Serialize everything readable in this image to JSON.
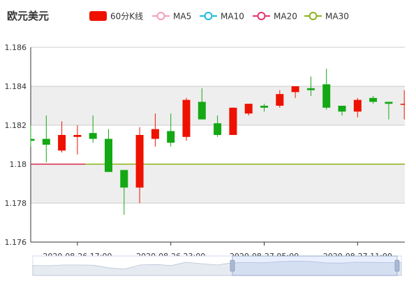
{
  "chart_data": {
    "type": "candlestick",
    "title": "欧元美元",
    "legend": {
      "placement": "top",
      "items": [
        {
          "name": "60分K线",
          "color": "#ee1100",
          "shape": "rect"
        },
        {
          "name": "MA5",
          "color": "#f59cc0",
          "shape": "line"
        },
        {
          "name": "MA10",
          "color": "#1cbbd8",
          "shape": "line"
        },
        {
          "name": "MA20",
          "color": "#e8326e",
          "shape": "line"
        },
        {
          "name": "MA30",
          "color": "#8ab31b",
          "shape": "line"
        }
      ]
    },
    "y_axis": {
      "min": 1.176,
      "max": 1.186,
      "ticks": [
        "1.176",
        "1.178",
        "1.18",
        "1.182",
        "1.184",
        "1.186"
      ]
    },
    "x_axis": {
      "labels": [
        "2020-08-26 17:00",
        "2020-08-26 23:00",
        "2020-08-27 05:00",
        "2020-08-27 11:00"
      ],
      "label_index": [
        3,
        9,
        15,
        21
      ]
    },
    "up_color": "#ee1100",
    "down_color": "#14a814",
    "candles": [
      {
        "open": 1.1813,
        "close": 1.1812,
        "low": 1.1809,
        "high": 1.182
      },
      {
        "open": 1.1813,
        "close": 1.181,
        "low": 1.1801,
        "high": 1.1825
      },
      {
        "open": 1.1807,
        "close": 1.1815,
        "low": 1.1806,
        "high": 1.1822
      },
      {
        "open": 1.1814,
        "close": 1.1815,
        "low": 1.1805,
        "high": 1.182
      },
      {
        "open": 1.1816,
        "close": 1.1813,
        "low": 1.1811,
        "high": 1.1825
      },
      {
        "open": 1.1813,
        "close": 1.1796,
        "low": 1.1796,
        "high": 1.1818
      },
      {
        "open": 1.1797,
        "close": 1.1788,
        "low": 1.1774,
        "high": 1.1797
      },
      {
        "open": 1.1788,
        "close": 1.1815,
        "low": 1.178,
        "high": 1.1819
      },
      {
        "open": 1.1813,
        "close": 1.1818,
        "low": 1.1809,
        "high": 1.1826
      },
      {
        "open": 1.1817,
        "close": 1.1811,
        "low": 1.1809,
        "high": 1.1826
      },
      {
        "open": 1.1814,
        "close": 1.1833,
        "low": 1.1812,
        "high": 1.1834
      },
      {
        "open": 1.1832,
        "close": 1.1823,
        "low": 1.1823,
        "high": 1.1839
      },
      {
        "open": 1.1821,
        "close": 1.1815,
        "low": 1.1814,
        "high": 1.1825
      },
      {
        "open": 1.1815,
        "close": 1.1829,
        "low": 1.1815,
        "high": 1.1829
      },
      {
        "open": 1.1826,
        "close": 1.1831,
        "low": 1.1825,
        "high": 1.1831
      },
      {
        "open": 1.183,
        "close": 1.1829,
        "low": 1.1827,
        "high": 1.1831
      },
      {
        "open": 1.183,
        "close": 1.1836,
        "low": 1.1829,
        "high": 1.1838
      },
      {
        "open": 1.1837,
        "close": 1.184,
        "low": 1.1834,
        "high": 1.184
      },
      {
        "open": 1.1839,
        "close": 1.1838,
        "low": 1.1835,
        "high": 1.1845
      },
      {
        "open": 1.1841,
        "close": 1.1829,
        "low": 1.1828,
        "high": 1.1849
      },
      {
        "open": 1.183,
        "close": 1.1827,
        "low": 1.1825,
        "high": 1.183
      },
      {
        "open": 1.1827,
        "close": 1.1833,
        "low": 1.1824,
        "high": 1.1834
      },
      {
        "open": 1.1834,
        "close": 1.1832,
        "low": 1.1831,
        "high": 1.1835
      },
      {
        "open": 1.1832,
        "close": 1.1831,
        "low": 1.1823,
        "high": 1.1832
      },
      {
        "open": 1.1831,
        "close": 1.1831,
        "low": 1.1823,
        "high": 1.1838
      }
    ],
    "ma30": {
      "start": 0,
      "end": 24,
      "value": 1.18
    },
    "ma20": {
      "start": 0,
      "end": 3,
      "value": 1.18
    },
    "grid": {
      "horizontal": true,
      "alternating_bands": true
    },
    "data_zoom": {
      "visible": true,
      "start_index": 13,
      "end_index": 24
    }
  }
}
